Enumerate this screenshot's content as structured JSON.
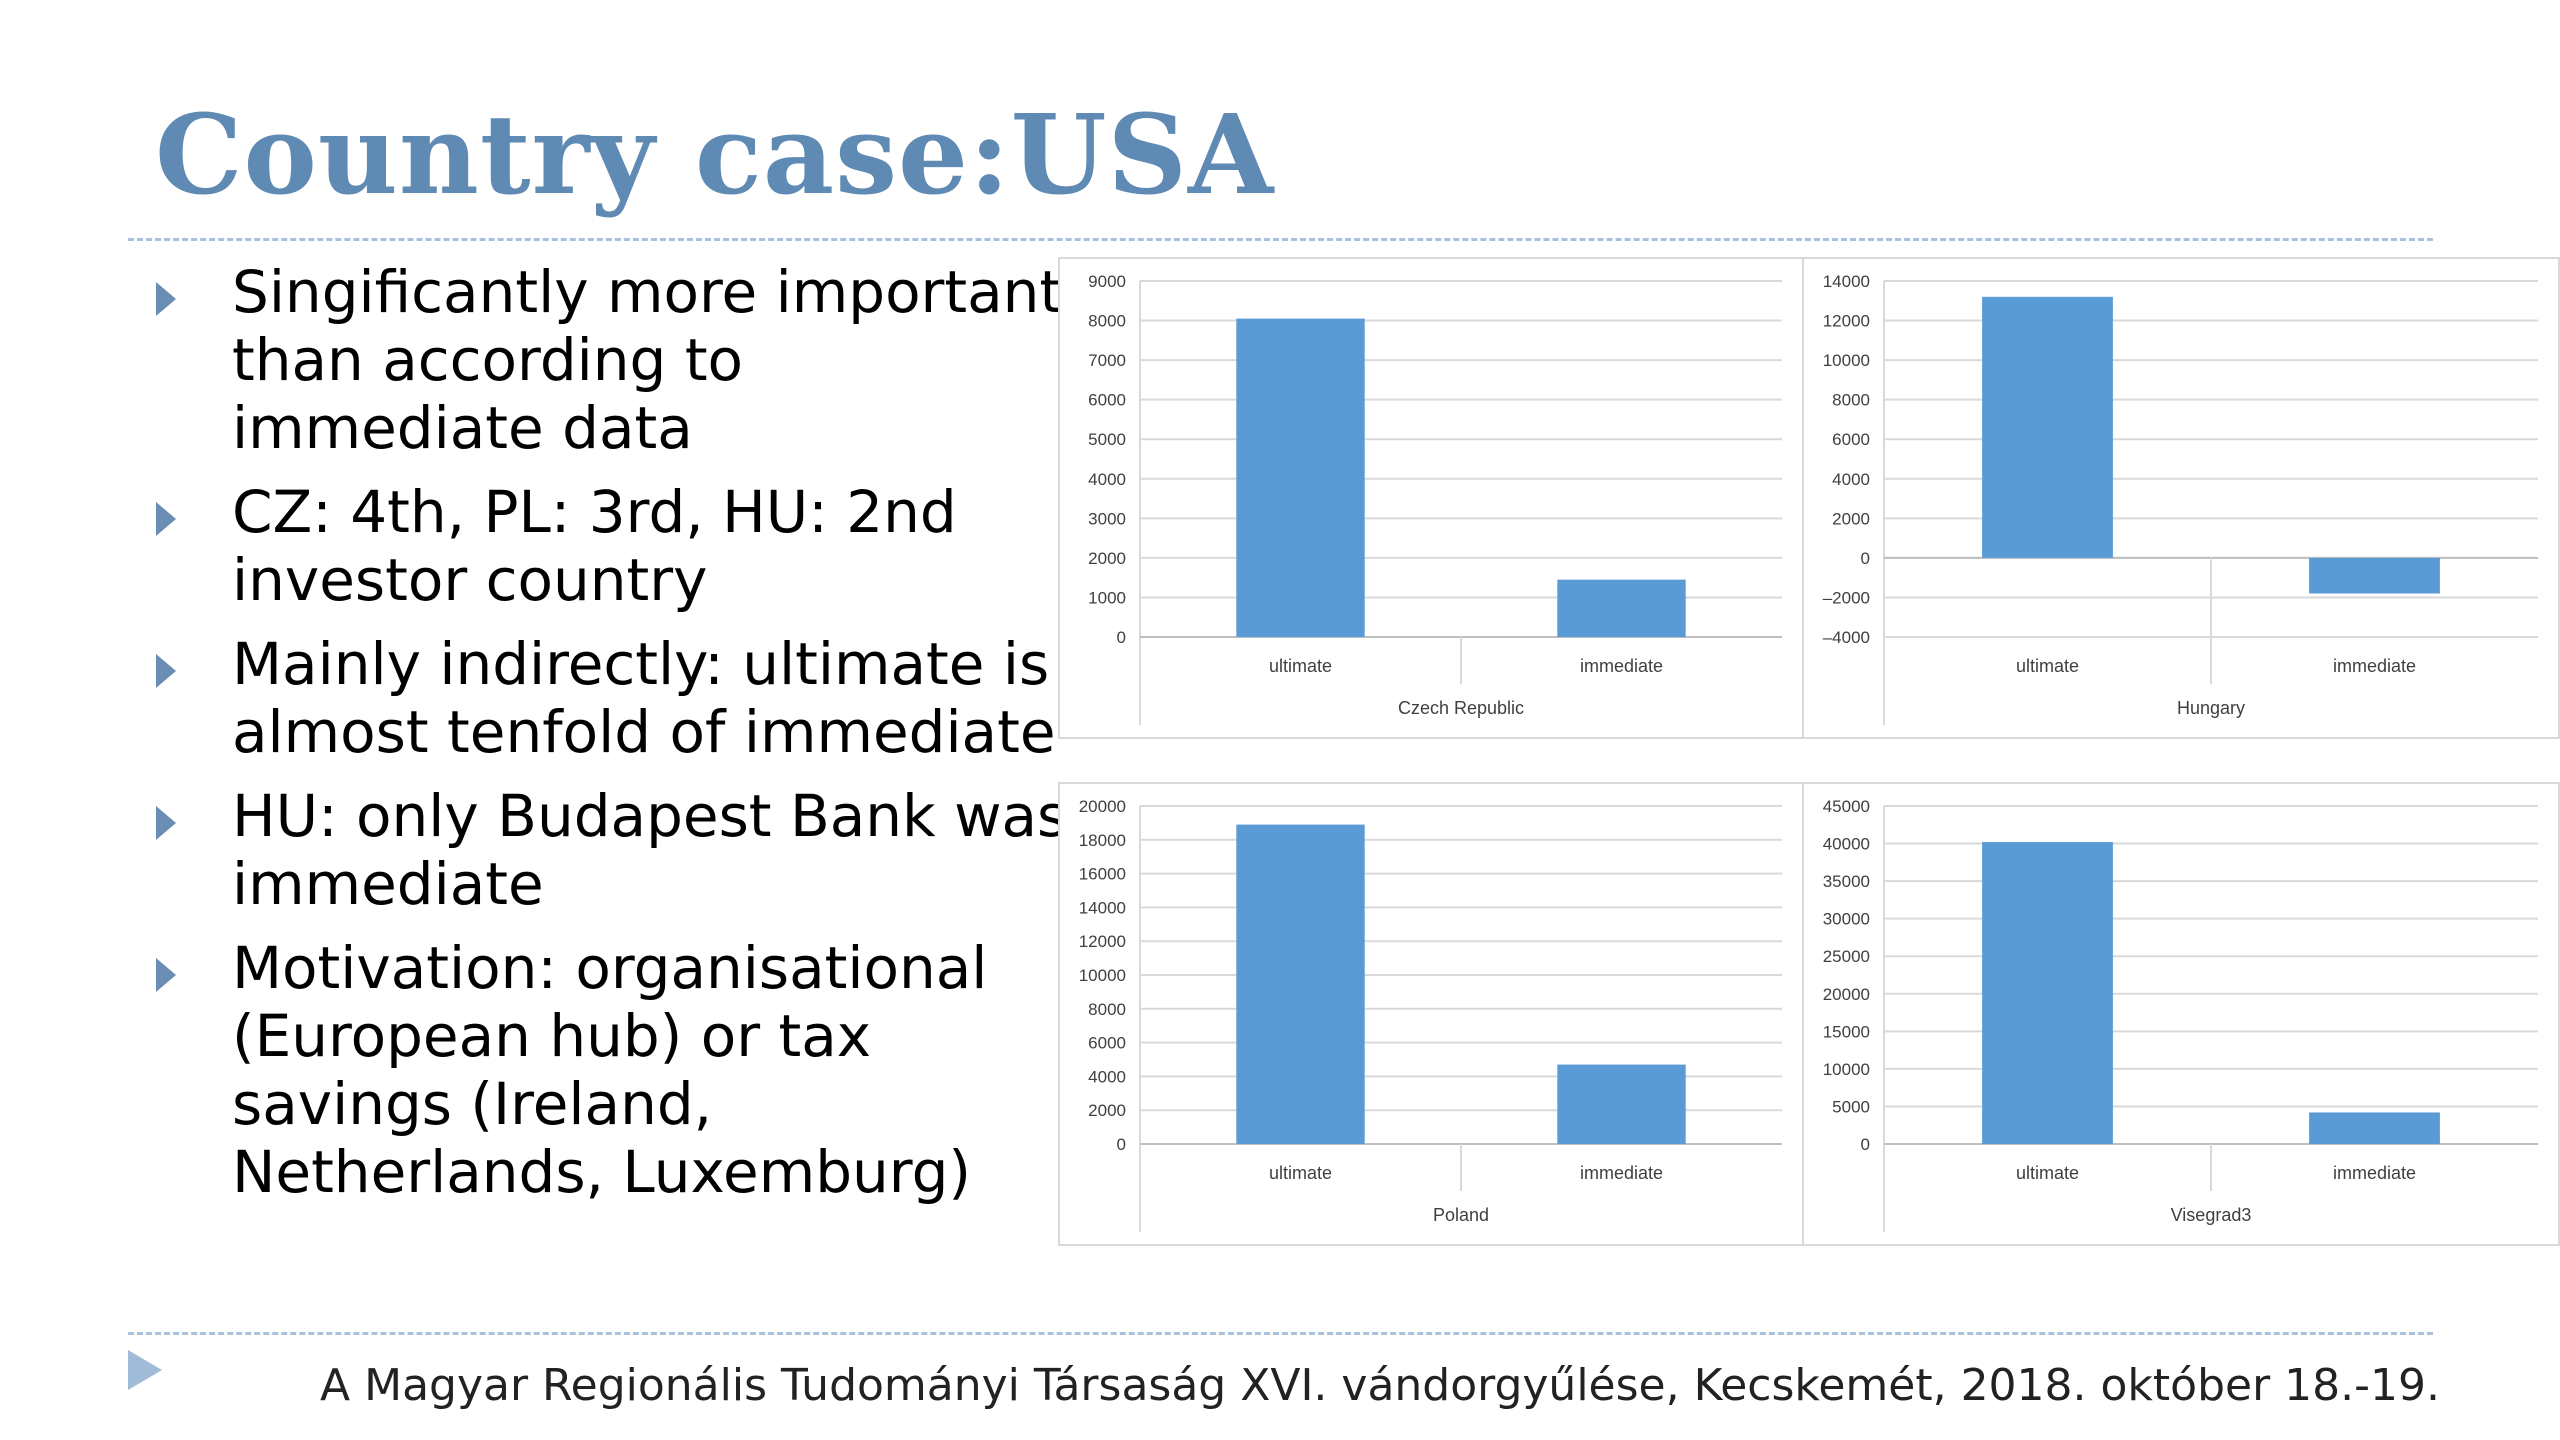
{
  "slide": {
    "title": "Country case:USA",
    "bullets": [
      "Singificantly more important than according to immediate data",
      "CZ: 4th, PL: 3rd, HU: 2nd investor country",
      "Mainly indirectly: ultimate is almost tenfold of immediate",
      "HU: only Budapest Bank was immediate",
      "Motivation: organisational (European hub) or tax savings (Ireland, Netherlands, Luxemburg)"
    ],
    "footer": "A Magyar Regionális Tudományi Társaság XVI. vándorgyűlése, Kecskemét, 2018. október 18.-19."
  },
  "colors": {
    "bar": "#5b9bd5",
    "title": "#5f8ab3",
    "grid": "#d9d9d9"
  },
  "chart_data": [
    {
      "type": "bar",
      "title": "",
      "xlabel": "Czech Republic",
      "ylabel": "",
      "categories": [
        "ultimate",
        "immediate"
      ],
      "values": [
        8050,
        1450
      ],
      "ylim": [
        0,
        9000
      ],
      "yticks": [
        0,
        1000,
        2000,
        3000,
        4000,
        5000,
        6000,
        7000,
        8000,
        9000
      ],
      "grid": true
    },
    {
      "type": "bar",
      "title": "",
      "xlabel": "Hungary",
      "ylabel": "",
      "categories": [
        "ultimate",
        "immediate"
      ],
      "values": [
        13200,
        -1800
      ],
      "ylim": [
        -4000,
        14000
      ],
      "yticks": [
        -4000,
        -2000,
        0,
        2000,
        4000,
        6000,
        8000,
        10000,
        12000,
        14000
      ],
      "grid": true
    },
    {
      "type": "bar",
      "title": "",
      "xlabel": "Poland",
      "ylabel": "",
      "categories": [
        "ultimate",
        "immediate"
      ],
      "values": [
        18900,
        4700
      ],
      "ylim": [
        0,
        20000
      ],
      "yticks": [
        0,
        2000,
        4000,
        6000,
        8000,
        10000,
        12000,
        14000,
        16000,
        18000,
        20000
      ],
      "grid": true
    },
    {
      "type": "bar",
      "title": "",
      "xlabel": "Visegrad3",
      "ylabel": "",
      "categories": [
        "ultimate",
        "immediate"
      ],
      "values": [
        40200,
        4200
      ],
      "ylim": [
        0,
        45000
      ],
      "yticks": [
        0,
        5000,
        10000,
        15000,
        20000,
        25000,
        30000,
        35000,
        40000,
        45000
      ],
      "grid": true
    }
  ]
}
